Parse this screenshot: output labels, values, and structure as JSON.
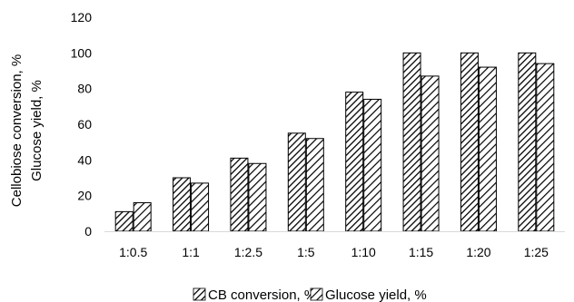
{
  "chart_data": {
    "type": "bar",
    "title": "",
    "xlabel": "",
    "ylabel_lines": [
      "Cellobiose conversion, %",
      "Glucose yield, %"
    ],
    "categories": [
      "1:0.5",
      "1:1",
      "1:2.5",
      "1:5",
      "1:10",
      "1:15",
      "1:20",
      "1:25"
    ],
    "series": [
      {
        "name": "CB conversion, %",
        "values": [
          11,
          30,
          41,
          55,
          78,
          100,
          100,
          100
        ]
      },
      {
        "name": "Glucose yield, %",
        "values": [
          16,
          27,
          38,
          52,
          74,
          87,
          92,
          94
        ]
      }
    ],
    "ylim": [
      0,
      120
    ],
    "yticks": [
      0,
      20,
      40,
      60,
      80,
      100,
      120
    ],
    "grid": false,
    "legend_position": "bottom"
  }
}
